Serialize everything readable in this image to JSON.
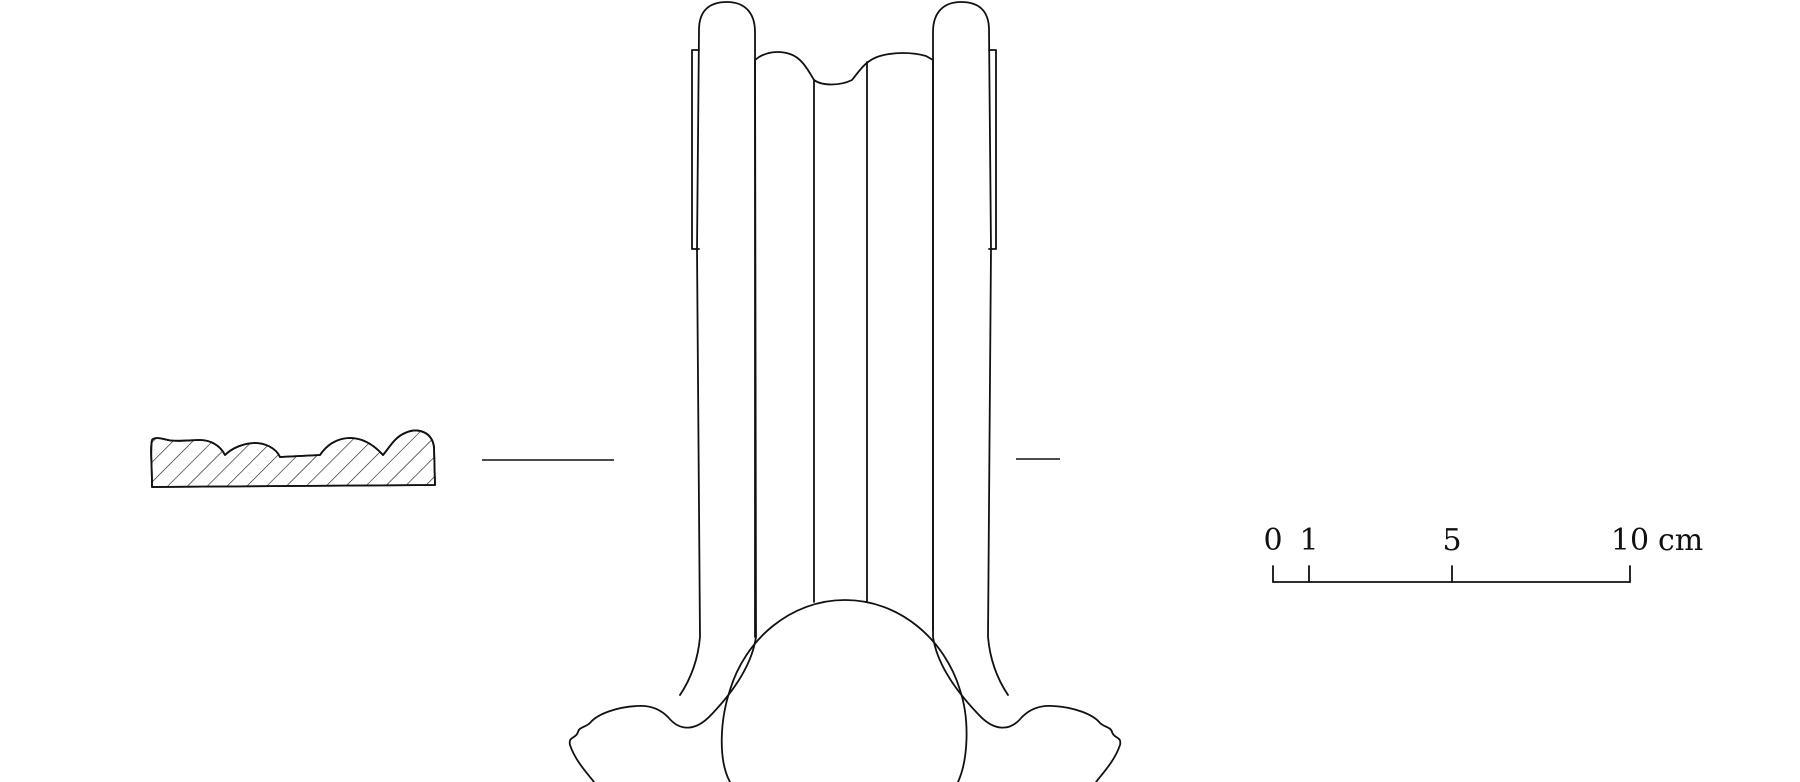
{
  "figure": {
    "description_labels": {
      "section": "cross-section",
      "object": "front view"
    },
    "colors": {
      "ink": "#111111",
      "background": "#ffffff"
    }
  },
  "scale_bar": {
    "labels": [
      "0",
      "1",
      "5",
      "10"
    ],
    "unit": "cm"
  }
}
